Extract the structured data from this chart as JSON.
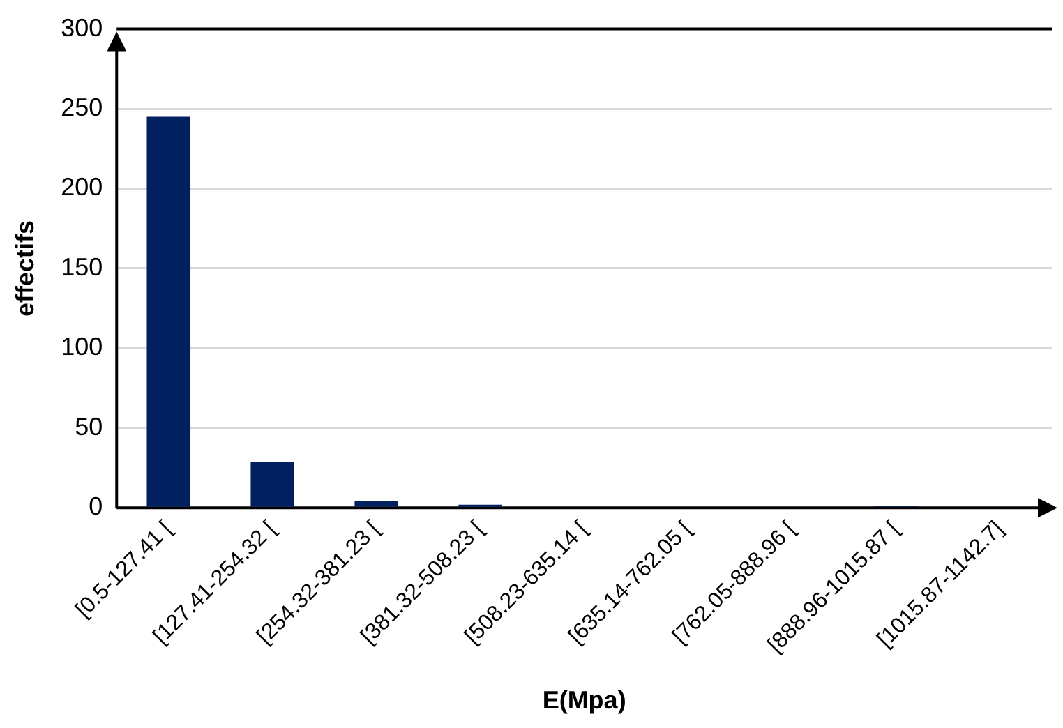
{
  "chart_data": {
    "type": "bar",
    "xlabel": "E(Mpa)",
    "ylabel": "effectifs",
    "categories": [
      "[0.5-127.41 [",
      "[127.41-254.32 [",
      "[254.32-381.23 [",
      "[381.32-508.23 [",
      "[508.23-635.14 [",
      "[635.14-762.05 [",
      "[762.05-888.96 [",
      "[888.96-1015.87 [",
      "[1015.87-1142.7]"
    ],
    "values": [
      245,
      29,
      4,
      2,
      0,
      0,
      0,
      1,
      0
    ],
    "color": "#002060",
    "ylim": [
      0,
      300
    ],
    "yticks": [
      0,
      50,
      100,
      150,
      200,
      250,
      300
    ],
    "grid": "y"
  }
}
